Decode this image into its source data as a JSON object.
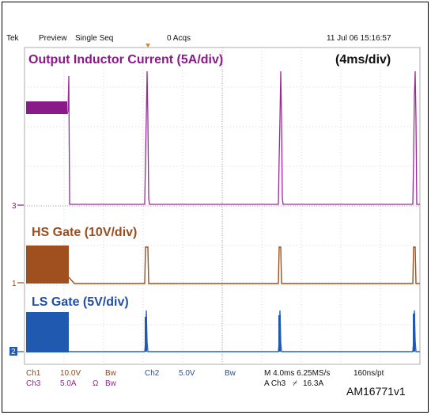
{
  "header": {
    "brand": "Tek",
    "mode": "Preview",
    "seq": "Single Seq",
    "acqs": "0 Acqs",
    "datetime": "11 Jul 06 15:16:57"
  },
  "timebase_label": "(4ms/div)",
  "traces": [
    {
      "name": "Output Inductor Current (5A/div)",
      "marker": "3",
      "color": "#8a1a8a"
    },
    {
      "name": "HS Gate (10V/div)",
      "marker": "1",
      "color": "#9a4e1e"
    },
    {
      "name": "LS Gate (5V/div)",
      "marker": "2",
      "color": "#1f4fa8"
    }
  ],
  "footer": {
    "ch1": "Ch1",
    "ch1_scale": "10.0V",
    "ch1_bw": "Bw",
    "ch2": "Ch2",
    "ch2_scale": "5.0V",
    "ch2_bw": "Bw",
    "ch3": "Ch3",
    "ch3_scale": "5.0A",
    "ch3_ohm": "Ω",
    "ch3_bw": "Bw",
    "timebase": "M 4.0ms 6.25MS/s",
    "resolution": "160ns/pt",
    "trigger_src": "A  Ch3",
    "trigger_slope": "⌿",
    "trigger_level": "16.3A"
  },
  "figure_code": "AM16771v1"
}
